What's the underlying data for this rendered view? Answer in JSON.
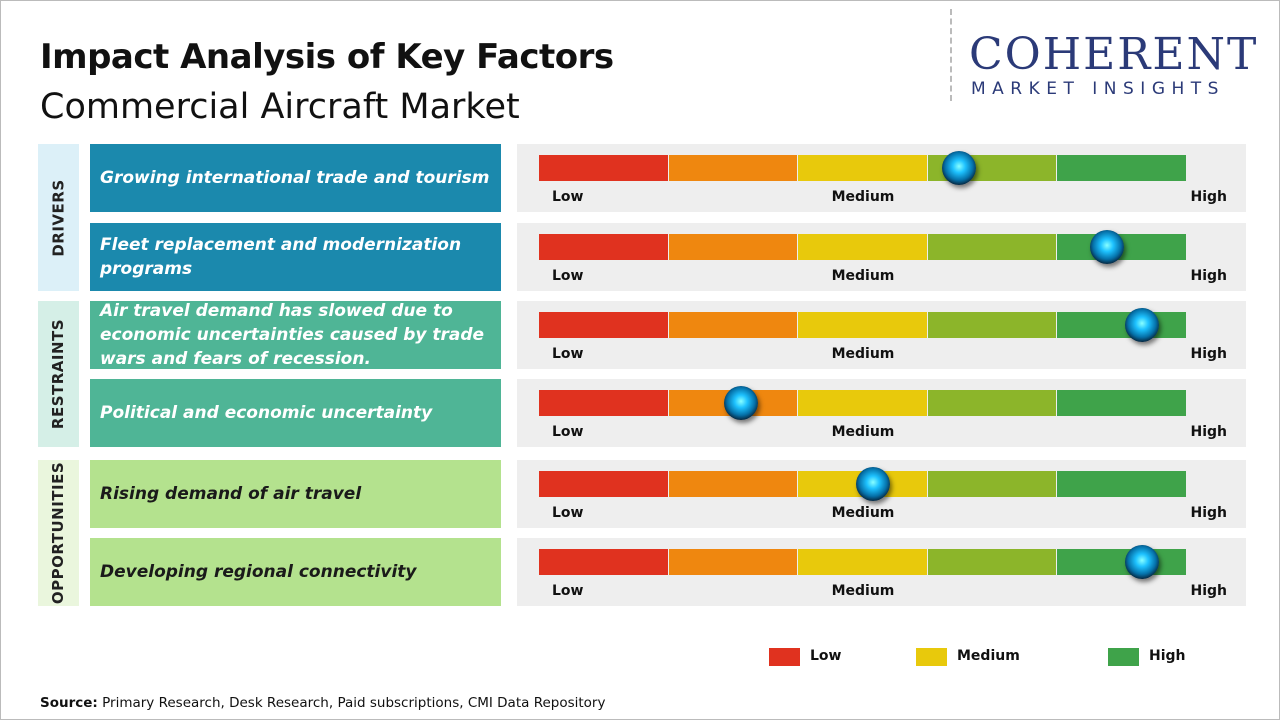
{
  "header": {
    "title": "Impact Analysis of Key Factors",
    "subtitle": "Commercial Aircraft Market"
  },
  "logo": {
    "name": "COHERENT",
    "tagline": "MARKET INSIGHTS"
  },
  "scale": {
    "segments": [
      "#e0321f",
      "#ef870f",
      "#e8c90c",
      "#8cb52a",
      "#3fa34a"
    ],
    "labels": [
      "Low",
      "Medium",
      "High"
    ]
  },
  "groups": [
    {
      "name": "DRIVERS",
      "background": "#dcf0f8",
      "color": "#1b89ad",
      "text_color": "#ffffff",
      "factors": [
        {
          "text": "Growing international trade and tourism",
          "impact": 3.24
        },
        {
          "text": "Fleet replacement and modernization programs",
          "impact": 4.38
        }
      ]
    },
    {
      "name": "RESTRAINTS",
      "background": "#d5efe7",
      "color": "#4fb596",
      "text_color": "#ffffff",
      "factors": [
        {
          "text": "Air travel demand has slowed due to economic uncertainties caused by trade wars and fears of recession.",
          "impact": 4.65
        },
        {
          "text": "Political and economic uncertainty",
          "impact": 1.56
        }
      ]
    },
    {
      "name": "OPPORTUNITIES",
      "background": "#eaf6dd",
      "color": "#b4e28e",
      "text_color": "#1a1a1a",
      "factors": [
        {
          "text": "Rising demand of air travel",
          "impact": 2.58
        },
        {
          "text": "Developing regional connectivity",
          "impact": 4.65
        }
      ]
    }
  ],
  "legend": [
    {
      "label": "Low",
      "color": "#e0321f"
    },
    {
      "label": "Medium",
      "color": "#e8c90c"
    },
    {
      "label": "High",
      "color": "#3fa34a"
    }
  ],
  "source": {
    "label": "Source:",
    "text": "Primary Research, Desk Research, Paid subscriptions, CMI Data Repository"
  }
}
